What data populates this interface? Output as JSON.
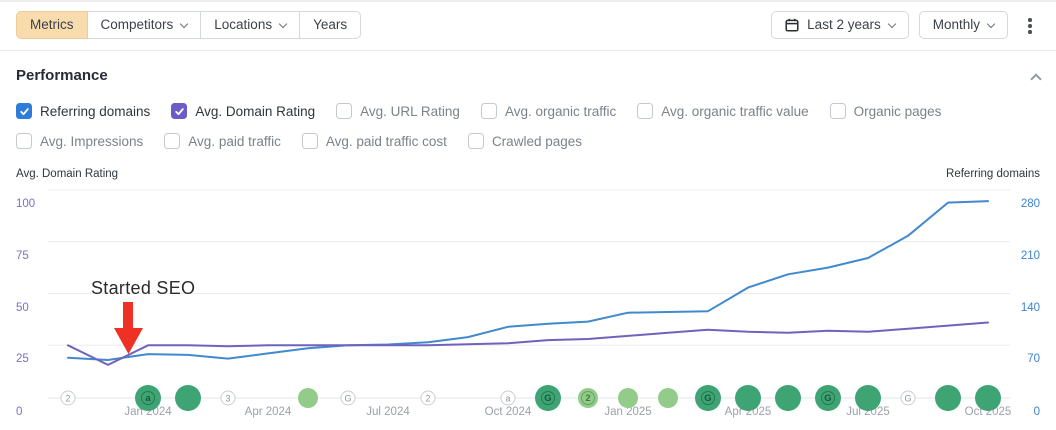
{
  "toolbar": {
    "left_buttons": [
      {
        "label": "Metrics",
        "active": true,
        "has_dropdown": false
      },
      {
        "label": "Competitors",
        "active": false,
        "has_dropdown": true
      },
      {
        "label": "Locations",
        "active": false,
        "has_dropdown": true
      },
      {
        "label": "Years",
        "active": false,
        "has_dropdown": false
      }
    ],
    "date_range": {
      "label": "Last 2 years",
      "icon": "calendar-icon"
    },
    "granularity": {
      "label": "Monthly"
    },
    "active_button_color": "#f9dcae"
  },
  "section": {
    "title": "Performance"
  },
  "metric_toggles": {
    "row1": [
      {
        "label": "Referring domains",
        "checked": true,
        "color": "#2e7cd8"
      },
      {
        "label": "Avg. Domain Rating",
        "checked": true,
        "color": "#6a5ec6"
      },
      {
        "label": "Avg. URL Rating",
        "checked": false
      },
      {
        "label": "Avg. organic traffic",
        "checked": false
      },
      {
        "label": "Avg. organic traffic value",
        "checked": false
      },
      {
        "label": "Organic pages",
        "checked": false
      }
    ],
    "row2": [
      {
        "label": "Avg. Impressions",
        "checked": false
      },
      {
        "label": "Avg. paid traffic",
        "checked": false
      },
      {
        "label": "Avg. paid traffic cost",
        "checked": false
      },
      {
        "label": "Crawled pages",
        "checked": false
      }
    ]
  },
  "chart_data": {
    "type": "line",
    "x": [
      "Nov 2023",
      "Dec 2023",
      "Jan 2024",
      "Feb 2024",
      "Mar 2024",
      "Apr 2024",
      "May 2024",
      "Jun 2024",
      "Jul 2024",
      "Aug 2024",
      "Sep 2024",
      "Oct 2024",
      "Nov 2024",
      "Dec 2024",
      "Jan 2025",
      "Feb 2025",
      "Mar 2025",
      "Apr 2025",
      "May 2025",
      "Jun 2025",
      "Jul 2025",
      "Aug 2025",
      "Sep 2025",
      "Oct 2025"
    ],
    "x_tick_labels": [
      "Jan 2024",
      "Apr 2024",
      "Jul 2024",
      "Oct 2024",
      "Jan 2025",
      "Apr 2025",
      "Jul 2025",
      "Oct 2025"
    ],
    "series": [
      {
        "name": "Referring domains",
        "axis": "right",
        "color": "#4189ce",
        "values": [
          53,
          50,
          58,
          57,
          52,
          59,
          66,
          70,
          71,
          74,
          81,
          95,
          99,
          102,
          114,
          115,
          116,
          148,
          166,
          175,
          188,
          218,
          263,
          265
        ]
      },
      {
        "name": "Avg. Domain Rating",
        "axis": "left",
        "color": "#6f63bd",
        "values": [
          25,
          15.5,
          25,
          25,
          24.5,
          25,
          25,
          25,
          25,
          25,
          25.5,
          26,
          27.5,
          28,
          29.5,
          31,
          32.5,
          31.5,
          31,
          32,
          31.5,
          33,
          34.5,
          36
        ]
      }
    ],
    "left_axis": {
      "title": "Avg. Domain Rating",
      "color": "#7a6fc4",
      "range": [
        0,
        100
      ],
      "ticks": [
        100,
        75,
        50,
        25,
        0
      ]
    },
    "right_axis": {
      "title": "Referring domains",
      "color": "#3b82cf",
      "range": [
        0,
        280
      ],
      "ticks": [
        280,
        210,
        140,
        70,
        0
      ]
    },
    "annotation": {
      "text": "Started SEO",
      "arrow_color": "#ee3124",
      "points_to": "Jan 2024"
    },
    "grid": true,
    "event_markers": [
      {
        "month_index": 0,
        "style": "outline",
        "label": "2"
      },
      {
        "month_index": 2,
        "style": "solid-dark",
        "label": "a"
      },
      {
        "month_index": 3,
        "style": "solid-dark",
        "label": ""
      },
      {
        "month_index": 4,
        "style": "outline",
        "label": "3"
      },
      {
        "month_index": 6,
        "style": "solid-light",
        "label": ""
      },
      {
        "month_index": 7,
        "style": "outline",
        "label": "G"
      },
      {
        "month_index": 9,
        "style": "outline",
        "label": "2"
      },
      {
        "month_index": 11,
        "style": "outline",
        "label": "a"
      },
      {
        "month_index": 12,
        "style": "solid-dark",
        "label": "G"
      },
      {
        "month_index": 13,
        "style": "solid-light",
        "label": "2"
      },
      {
        "month_index": 14,
        "style": "solid-light",
        "label": ""
      },
      {
        "month_index": 15,
        "style": "solid-light",
        "label": ""
      },
      {
        "month_index": 16,
        "style": "solid-dark",
        "label": "G"
      },
      {
        "month_index": 17,
        "style": "solid-dark",
        "label": ""
      },
      {
        "month_index": 18,
        "style": "solid-dark",
        "label": ""
      },
      {
        "month_index": 19,
        "style": "solid-dark",
        "label": "G"
      },
      {
        "month_index": 20,
        "style": "solid-dark",
        "label": ""
      },
      {
        "month_index": 21,
        "style": "outline",
        "label": "G"
      },
      {
        "month_index": 22,
        "style": "solid-dark",
        "label": ""
      },
      {
        "month_index": 23,
        "style": "solid-dark",
        "label": ""
      }
    ]
  }
}
